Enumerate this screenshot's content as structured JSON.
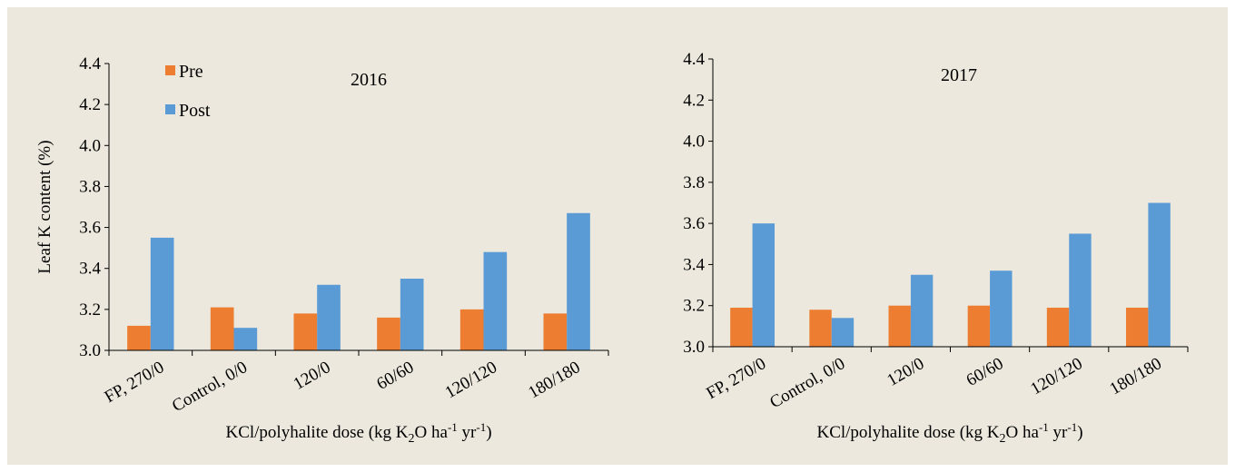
{
  "colors": {
    "pre": "#ED7D31",
    "post": "#5B9BD5",
    "background": "#ECE8DD"
  },
  "chart_data": [
    {
      "type": "bar",
      "title": "2016",
      "ylabel": "Leaf K content (%)",
      "xlabel": "KCl/polyhalite dose (kg K2O ha-1 yr-1)",
      "xlabel_parts": {
        "a": "KCl/polyhalite dose (kg K",
        "b": "2",
        "c": "O ha",
        "d": "-1",
        "e": " yr",
        "f": "-1",
        "g": ")"
      },
      "ylim": [
        3.0,
        4.4
      ],
      "yticks": [
        "3.0",
        "3.2",
        "3.4",
        "3.6",
        "3.8",
        "4.0",
        "4.2",
        "4.4"
      ],
      "categories": [
        "FP, 270/0",
        "Control, 0/0",
        "120/0",
        "60/60",
        "120/120",
        "180/180"
      ],
      "legend": {
        "position": "top-left"
      },
      "series": [
        {
          "name": "Pre",
          "values": [
            3.12,
            3.21,
            3.18,
            3.16,
            3.2,
            3.18
          ]
        },
        {
          "name": "Post",
          "values": [
            3.55,
            3.11,
            3.32,
            3.35,
            3.48,
            3.67
          ]
        }
      ]
    },
    {
      "type": "bar",
      "title": "2017",
      "xlabel": "KCl/polyhalite dose (kg K2O ha-1 yr-1)",
      "xlabel_parts": {
        "a": "KCl/polyhalite dose (kg K",
        "b": "2",
        "c": "O ha",
        "d": "-1",
        "e": " yr",
        "f": "-1",
        "g": ")"
      },
      "ylim": [
        3.0,
        4.4
      ],
      "yticks": [
        "3.0",
        "3.2",
        "3.4",
        "3.6",
        "3.8",
        "4.0",
        "4.2",
        "4.4"
      ],
      "categories": [
        "FP, 270/0",
        "Control, 0/0",
        "120/0",
        "60/60",
        "120/120",
        "180/180"
      ],
      "series": [
        {
          "name": "Pre",
          "values": [
            3.19,
            3.18,
            3.2,
            3.2,
            3.19,
            3.19
          ]
        },
        {
          "name": "Post",
          "values": [
            3.6,
            3.14,
            3.35,
            3.37,
            3.55,
            3.7
          ]
        }
      ]
    }
  ]
}
